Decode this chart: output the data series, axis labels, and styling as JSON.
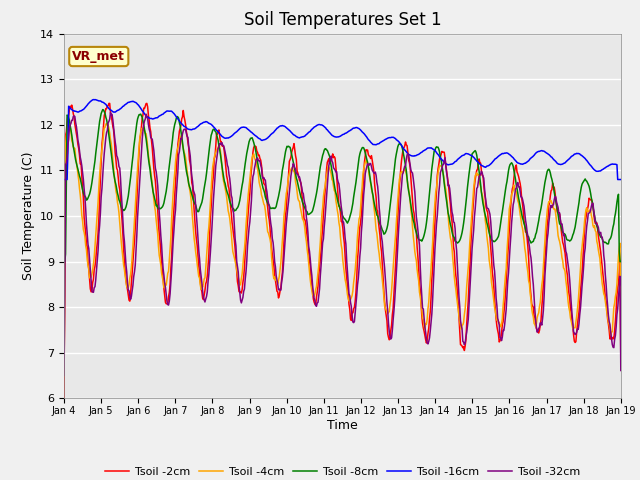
{
  "title": "Soil Temperatures Set 1",
  "xlabel": "Time",
  "ylabel": "Soil Temperature (C)",
  "ylim": [
    6.0,
    14.0
  ],
  "yticks": [
    6.0,
    7.0,
    8.0,
    9.0,
    10.0,
    11.0,
    12.0,
    13.0,
    14.0
  ],
  "xtick_labels": [
    "Jan 4",
    "Jan 5",
    "Jan 6",
    "Jan 7",
    "Jan 8",
    "Jan 9",
    "Jan 10",
    "Jan 11",
    "Jan 12",
    "Jan 13",
    "Jan 14",
    "Jan 15",
    "Jan 16",
    "Jan 17",
    "Jan 18",
    "Jan 19"
  ],
  "annotation_text": "VR_met",
  "bg_color": "#e8e8e8",
  "fig_facecolor": "#f0f0f0",
  "series_colors": [
    "red",
    "orange",
    "green",
    "blue",
    "purple"
  ],
  "series_labels": [
    "Tsoil -2cm",
    "Tsoil -4cm",
    "Tsoil -8cm",
    "Tsoil -16cm",
    "Tsoil -32cm"
  ],
  "linewidth": 1.1,
  "n_points": 720
}
